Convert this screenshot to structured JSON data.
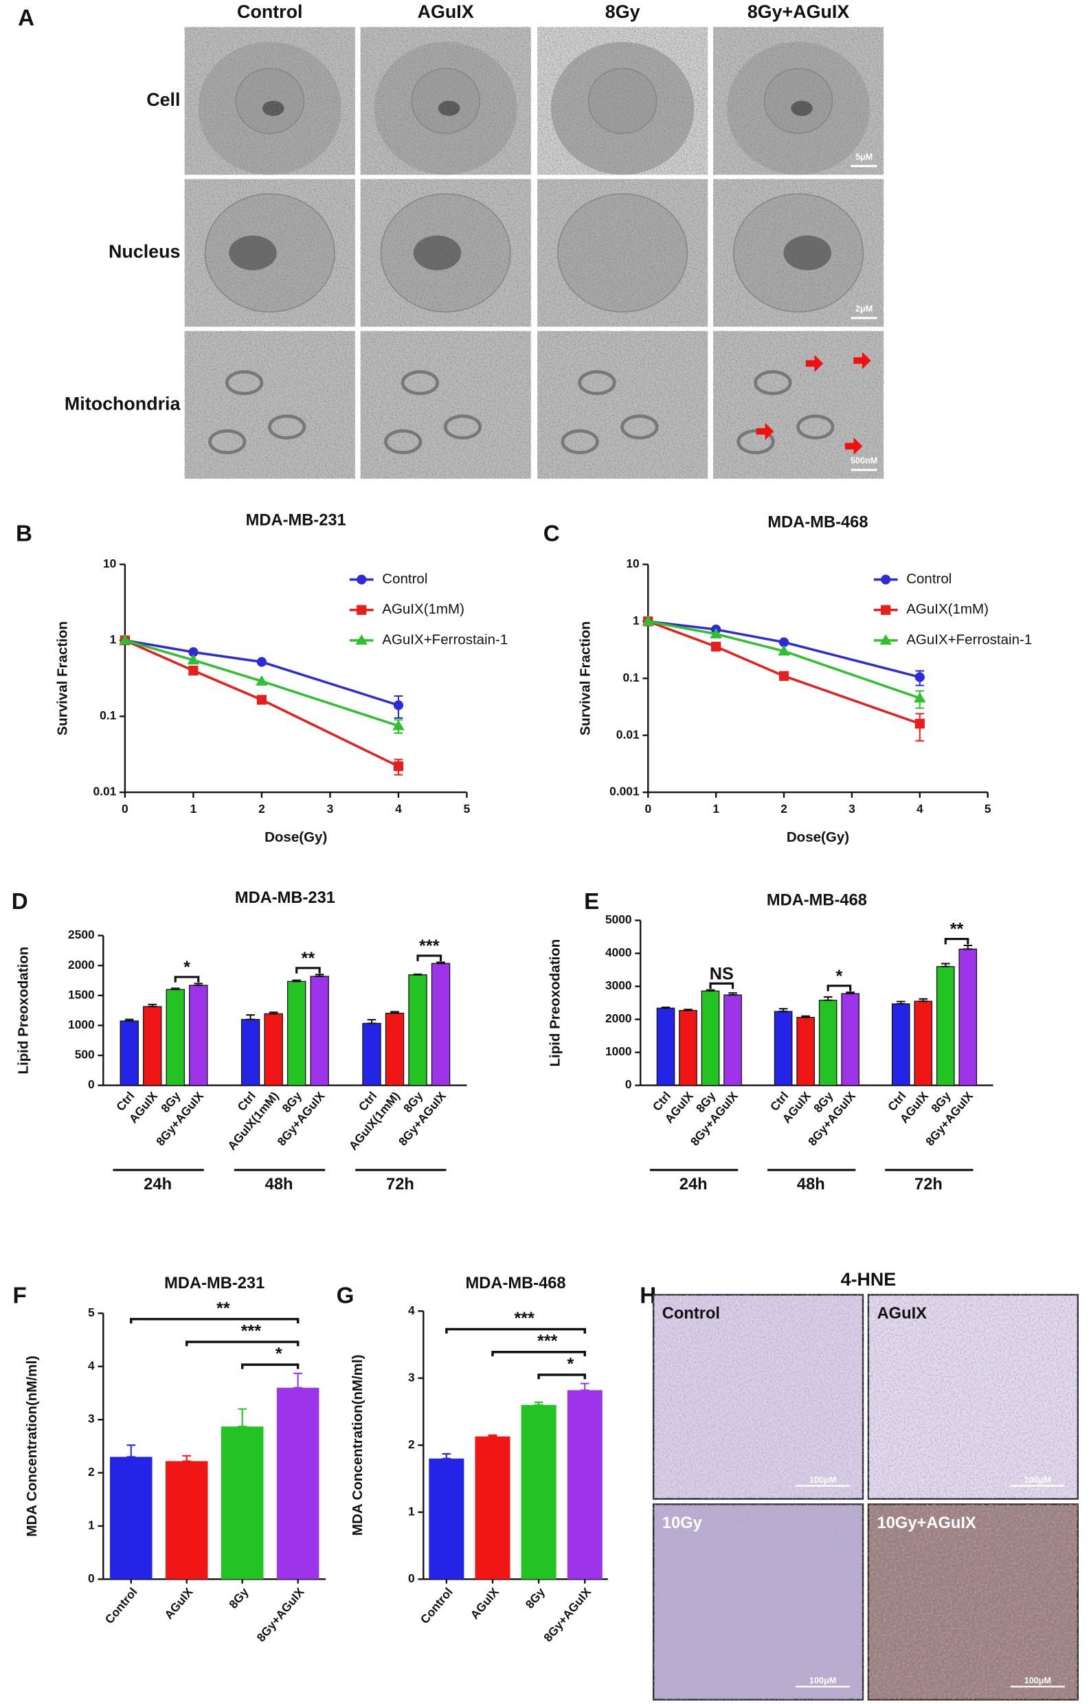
{
  "panel_a": {
    "label": "A",
    "columns": [
      "Control",
      "AGuIX",
      "8Gy",
      "8Gy+AGuIX"
    ],
    "rows": [
      {
        "label": "Cell",
        "scale_bar": "5μM"
      },
      {
        "label": "Nucleus",
        "scale_bar": "2μM"
      },
      {
        "label": "Mitochondria",
        "scale_bar": "500nM"
      }
    ]
  },
  "chart_data": [
    {
      "panel": "B",
      "type": "line",
      "title": "MDA-MB-231",
      "xlabel": "Dose(Gy)",
      "ylabel": "Survival Fraction",
      "log_y": true,
      "x": [
        0,
        1,
        2,
        4
      ],
      "xlim": [
        0,
        5
      ],
      "xticks": [
        0,
        1,
        2,
        3,
        4,
        5
      ],
      "ylim": [
        0.01,
        10
      ],
      "yticks": [
        0.01,
        0.1,
        1,
        10
      ],
      "legend": "upper right",
      "series": [
        {
          "name": "Control",
          "color": "#2b2bd9",
          "marker": "circle",
          "values": [
            1,
            0.7,
            0.52,
            0.14
          ],
          "errors": [
            null,
            null,
            0.02,
            0.045
          ]
        },
        {
          "name": "AGuIX(1mM)",
          "color": "#e61e1e",
          "marker": "square",
          "values": [
            1,
            0.4,
            0.165,
            0.022
          ],
          "errors": [
            null,
            0.03,
            0.01,
            0.005
          ]
        },
        {
          "name": "AGuIX+Ferrostain-1",
          "color": "#2ec02e",
          "marker": "triangle",
          "values": [
            1,
            0.55,
            0.29,
            0.075
          ],
          "errors": [
            null,
            null,
            null,
            0.015
          ]
        }
      ]
    },
    {
      "panel": "C",
      "type": "line",
      "title": "MDA-MB-468",
      "xlabel": "Dose(Gy)",
      "ylabel": "Survival Fraction",
      "log_y": true,
      "x": [
        0,
        1,
        2,
        4
      ],
      "xlim": [
        0,
        5
      ],
      "xticks": [
        0,
        1,
        2,
        3,
        4,
        5
      ],
      "ylim": [
        0.001,
        10
      ],
      "yticks": [
        0.001,
        0.01,
        0.1,
        1,
        10
      ],
      "legend": "upper right",
      "series": [
        {
          "name": "Control",
          "color": "#2b2bd9",
          "marker": "circle",
          "values": [
            1,
            0.72,
            0.43,
            0.105
          ],
          "errors": [
            null,
            null,
            null,
            0.03
          ]
        },
        {
          "name": "AGuIX(1mM)",
          "color": "#e61e1e",
          "marker": "square",
          "values": [
            1,
            0.36,
            0.11,
            0.016
          ],
          "errors": [
            null,
            null,
            0.01,
            0.008
          ]
        },
        {
          "name": "AGuIX+Ferrostain-1",
          "color": "#2ec02e",
          "marker": "triangle",
          "values": [
            1,
            0.6,
            0.3,
            0.045
          ],
          "errors": [
            null,
            null,
            null,
            0.015
          ]
        }
      ]
    },
    {
      "panel": "D",
      "type": "grouped_bar",
      "title": "MDA-MB-231",
      "ylabel": "Lipid Preoxodation",
      "ylim": [
        0,
        2500
      ],
      "yticks": [
        0,
        500,
        1000,
        1500,
        2000,
        2500
      ],
      "colors": [
        "#2424e6",
        "#f01616",
        "#22c322",
        "#9d34ea"
      ],
      "groups": [
        {
          "name": "24h",
          "categories": [
            "Ctrl",
            "AGuIX",
            "8Gy",
            "8Gy+AGuIX"
          ],
          "values": [
            1075,
            1315,
            1600,
            1670
          ],
          "errors": [
            25,
            35,
            20,
            30
          ],
          "significance": "*"
        },
        {
          "name": "48h",
          "categories": [
            "Ctrl",
            "AGuIX(1mM)",
            "8Gy",
            "8Gy+AGuIX"
          ],
          "values": [
            1100,
            1195,
            1735,
            1820
          ],
          "errors": [
            75,
            25,
            20,
            30
          ],
          "significance": "**"
        },
        {
          "name": "72h",
          "categories": [
            "Ctrl",
            "AGuIX(1mM)",
            "8Gy",
            "8Gy+AGuIX"
          ],
          "values": [
            1035,
            1205,
            1845,
            2035
          ],
          "errors": [
            60,
            25,
            10,
            20
          ],
          "significance": "***"
        }
      ]
    },
    {
      "panel": "E",
      "type": "grouped_bar",
      "title": "MDA-MB-468",
      "ylabel": "Lipid Preoxodation",
      "ylim": [
        0,
        5000
      ],
      "yticks": [
        0,
        1000,
        2000,
        3000,
        4000,
        5000
      ],
      "colors": [
        "#2424e6",
        "#f01616",
        "#22c322",
        "#9d34ea"
      ],
      "groups": [
        {
          "name": "24h",
          "categories": [
            "Ctrl",
            "AGuIX",
            "8Gy",
            "8Gy+AGuIX"
          ],
          "values": [
            2340,
            2270,
            2860,
            2740
          ],
          "errors": [
            25,
            30,
            30,
            60
          ],
          "significance": "NS"
        },
        {
          "name": "48h",
          "categories": [
            "Ctrl",
            "AGuIX",
            "8Gy",
            "8Gy+AGuIX"
          ],
          "values": [
            2240,
            2060,
            2580,
            2780
          ],
          "errors": [
            80,
            40,
            100,
            40
          ],
          "significance": "*"
        },
        {
          "name": "72h",
          "categories": [
            "Ctrl",
            "AGuIX",
            "8Gy",
            "8Gy+AGuIX"
          ],
          "values": [
            2470,
            2550,
            3600,
            4130
          ],
          "errors": [
            70,
            70,
            90,
            110
          ],
          "significance": "**"
        }
      ]
    },
    {
      "panel": "F",
      "type": "bar",
      "title": "MDA-MB-231",
      "ylabel": "MDA Concentration(nM/ml)",
      "categories": [
        "Control",
        "AGuIX",
        "8Gy",
        "8Gy+AGuIX"
      ],
      "values": [
        2.3,
        2.22,
        2.87,
        3.6
      ],
      "errors": [
        0.22,
        0.1,
        0.33,
        0.27
      ],
      "colors": [
        "#2424e6",
        "#f01616",
        "#22c322",
        "#9d34ea"
      ],
      "ylim": [
        0,
        5
      ],
      "yticks": [
        0,
        1,
        2,
        3,
        4,
        5
      ],
      "comparisons": [
        {
          "label": "**",
          "between": [
            "Control",
            "8Gy+AGuIX"
          ]
        },
        {
          "label": "***",
          "between": [
            "AGuIX",
            "8Gy+AGuIX"
          ]
        },
        {
          "label": "*",
          "between": [
            "8Gy",
            "8Gy+AGuIX"
          ]
        }
      ]
    },
    {
      "panel": "G",
      "type": "bar",
      "title": "MDA-MB-468",
      "ylabel": "MDA Concentration(nM/ml)",
      "categories": [
        "Control",
        "AGuIX",
        "8Gy",
        "8Gy+AGuIX"
      ],
      "values": [
        1.8,
        2.13,
        2.6,
        2.82
      ],
      "errors": [
        0.07,
        0.02,
        0.04,
        0.1
      ],
      "colors": [
        "#2424e6",
        "#f01616",
        "#22c322",
        "#9d34ea"
      ],
      "ylim": [
        0,
        4
      ],
      "yticks": [
        0,
        1,
        2,
        3,
        4
      ],
      "comparisons": [
        {
          "label": "***",
          "between": [
            "Control",
            "8Gy+AGuIX"
          ]
        },
        {
          "label": "***",
          "between": [
            "AGuIX",
            "8Gy+AGuIX"
          ]
        },
        {
          "label": "*",
          "between": [
            "8Gy",
            "8Gy+AGuIX"
          ]
        }
      ]
    }
  ],
  "panel_h": {
    "label": "H",
    "title": "4-HNE",
    "images": [
      "Control",
      "AGuIX",
      "10Gy",
      "10Gy+AGuIX"
    ],
    "scale_bar": "100μM"
  }
}
